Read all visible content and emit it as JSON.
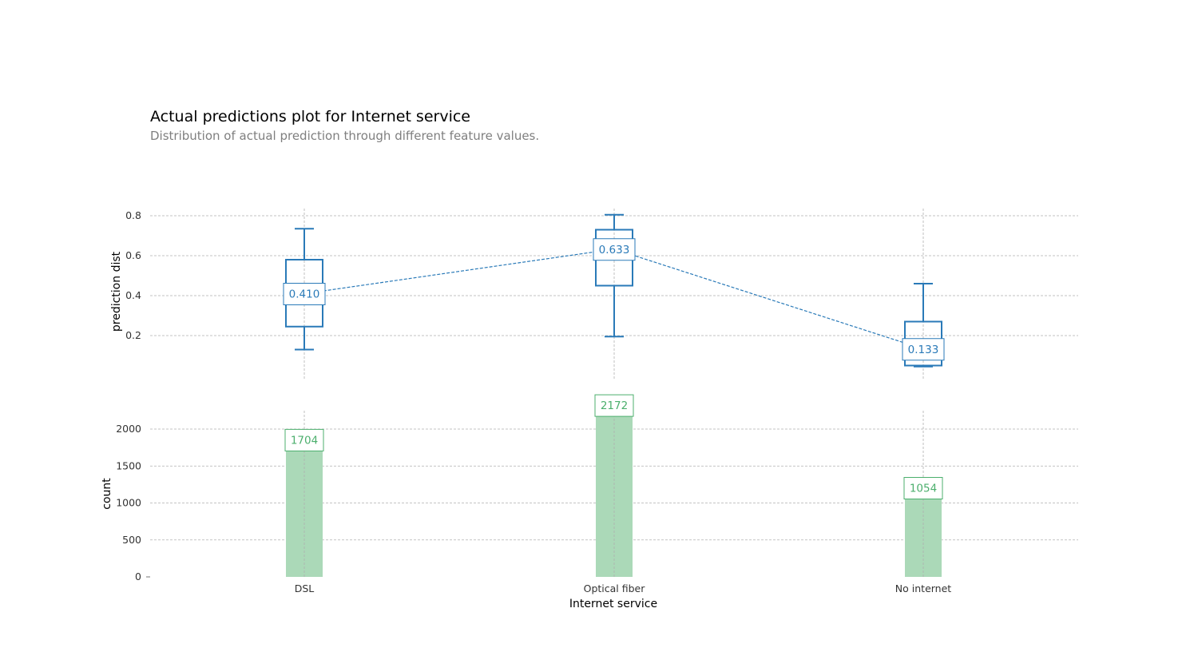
{
  "colors": {
    "box": "#2a7ab8",
    "bar_fill": "#abd9b8",
    "bar_label": "#4caf6d"
  },
  "chart_data": {
    "type": "box+bar",
    "title": "Actual predictions plot for Internet service",
    "subtitle": "Distribution of actual prediction through different feature values.",
    "xlabel": "Internet service",
    "categories": [
      "DSL",
      "Optical fiber",
      "No internet"
    ],
    "top": {
      "type": "box",
      "ylabel": "prediction dist",
      "ylim": [
        0,
        0.83
      ],
      "yticks": [
        "0.2",
        "0.4",
        "0.6",
        "0.8"
      ],
      "boxes": [
        {
          "whisker_low": 0.13,
          "q1": 0.245,
          "q3": 0.58,
          "whisker_high": 0.735,
          "mean": 0.41,
          "label": "0.410"
        },
        {
          "whisker_low": 0.195,
          "q1": 0.45,
          "q3": 0.73,
          "whisker_high": 0.805,
          "mean": 0.633,
          "label": "0.633"
        },
        {
          "whisker_low": 0.045,
          "q1": 0.05,
          "q3": 0.27,
          "whisker_high": 0.46,
          "mean": 0.133,
          "label": "0.133"
        }
      ]
    },
    "bottom": {
      "type": "bar",
      "ylabel": "count",
      "ylim": [
        0,
        2300
      ],
      "yticks": [
        "0",
        "500",
        "1000",
        "1500",
        "2000"
      ],
      "values": [
        1704,
        2172,
        1054
      ],
      "labels": [
        "1704",
        "2172",
        "1054"
      ]
    }
  }
}
